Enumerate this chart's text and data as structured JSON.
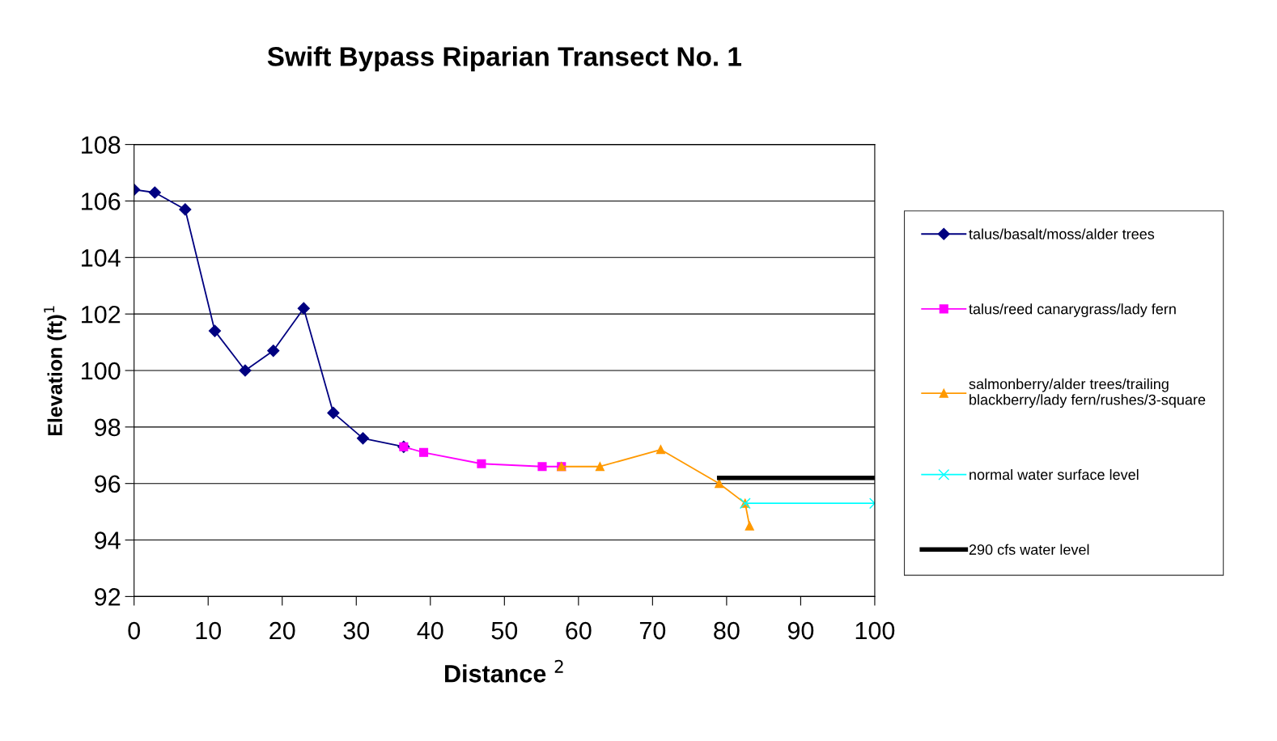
{
  "chart_data": {
    "type": "line",
    "title": "Swift Bypass Riparian Transect No. 1",
    "xlabel": "Distance $^{2}$",
    "ylabel": "Elevation (ft)$^{1}$",
    "xlim": [
      0,
      100
    ],
    "xticks": [
      0,
      10,
      20,
      30,
      40,
      50,
      60,
      70,
      80,
      90,
      100
    ],
    "ylim": [
      92,
      108
    ],
    "yticks": [
      92,
      94,
      96,
      98,
      100,
      102,
      104,
      106,
      108
    ],
    "grid": "y",
    "legend": "right",
    "series": [
      {
        "name": "talus/basalt/moss/alder trees",
        "color": "#000080",
        "marker": "diamond",
        "x": [
          0,
          2.8,
          6.9,
          10.9,
          15.0,
          18.8,
          22.9,
          26.9,
          30.9,
          36.4
        ],
        "values": [
          106.4,
          106.3,
          105.7,
          101.4,
          100.0,
          100.7,
          102.2,
          98.5,
          97.6,
          97.3
        ]
      },
      {
        "name": "talus/reed canarygrass/lady fern",
        "color": "#ff00ff",
        "marker": "square",
        "x": [
          36.4,
          39.1,
          46.9,
          55.1,
          57.7
        ],
        "values": [
          97.3,
          97.1,
          96.7,
          96.6,
          96.6
        ]
      },
      {
        "name": "salmonberry/alder trees/trailing\nblackberry/lady fern/rushes/3-square",
        "color": "#ff9900",
        "marker": "triangle",
        "x": [
          57.7,
          62.9,
          71.1,
          79.0,
          82.5,
          83.1
        ],
        "values": [
          96.6,
          96.6,
          97.2,
          96.0,
          95.3,
          94.5
        ]
      },
      {
        "name": "normal water surface level",
        "color": "#00ffff",
        "marker": "cross",
        "x": [
          82.5,
          100
        ],
        "values": [
          95.3,
          95.3
        ]
      },
      {
        "name": "290 cfs water level",
        "color": "#000000",
        "marker": "none",
        "x": [
          79.0,
          100
        ],
        "values": [
          96.2,
          96.2
        ]
      }
    ]
  }
}
